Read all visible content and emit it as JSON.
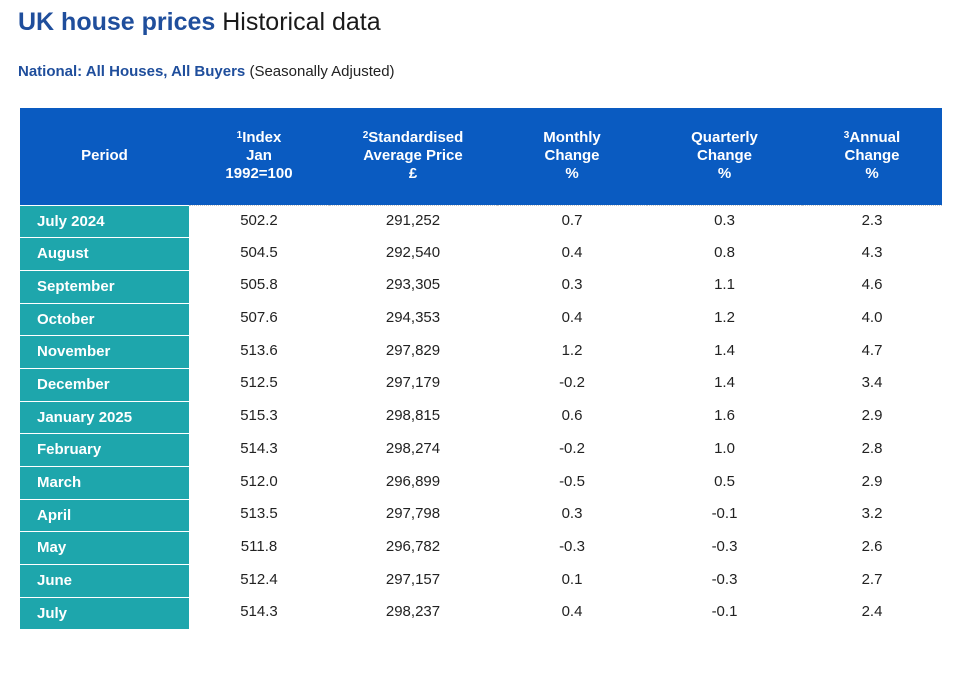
{
  "header": {
    "title_brand": "UK house prices",
    "title_rest": "Historical data"
  },
  "subheader": {
    "label": "National: All Houses, All Buyers",
    "qualifier": "(Seasonally Adjusted)"
  },
  "table": {
    "columns": [
      {
        "sup": "",
        "lines": [
          "Period"
        ]
      },
      {
        "sup": "1",
        "lines": [
          "Index",
          "Jan",
          "1992=100"
        ]
      },
      {
        "sup": "2",
        "lines": [
          "Standardised",
          "Average Price",
          "£"
        ]
      },
      {
        "sup": "",
        "lines": [
          "Monthly",
          "Change",
          "%"
        ]
      },
      {
        "sup": "",
        "lines": [
          "Quarterly",
          "Change",
          "%"
        ]
      },
      {
        "sup": "3",
        "lines": [
          "Annual",
          "Change",
          "%"
        ]
      }
    ],
    "rows": [
      {
        "period": "July 2024",
        "index": "502.2",
        "price": "291,252",
        "monthly": "0.7",
        "quarterly": "0.3",
        "annual": "2.3"
      },
      {
        "period": "August",
        "index": "504.5",
        "price": "292,540",
        "monthly": "0.4",
        "quarterly": "0.8",
        "annual": "4.3"
      },
      {
        "period": "September",
        "index": "505.8",
        "price": "293,305",
        "monthly": "0.3",
        "quarterly": "1.1",
        "annual": "4.6"
      },
      {
        "period": "October",
        "index": "507.6",
        "price": "294,353",
        "monthly": "0.4",
        "quarterly": "1.2",
        "annual": "4.0"
      },
      {
        "period": "November",
        "index": "513.6",
        "price": "297,829",
        "monthly": "1.2",
        "quarterly": "1.4",
        "annual": "4.7"
      },
      {
        "period": "December",
        "index": "512.5",
        "price": "297,179",
        "monthly": "-0.2",
        "quarterly": "1.4",
        "annual": "3.4"
      },
      {
        "period": "January 2025",
        "index": "515.3",
        "price": "298,815",
        "monthly": "0.6",
        "quarterly": "1.6",
        "annual": "2.9"
      },
      {
        "period": "February",
        "index": "514.3",
        "price": "298,274",
        "monthly": "-0.2",
        "quarterly": "1.0",
        "annual": "2.8"
      },
      {
        "period": "March",
        "index": "512.0",
        "price": "296,899",
        "monthly": "-0.5",
        "quarterly": "0.5",
        "annual": "2.9"
      },
      {
        "period": "April",
        "index": "513.5",
        "price": "297,798",
        "monthly": "0.3",
        "quarterly": "-0.1",
        "annual": "3.2"
      },
      {
        "period": "May",
        "index": "511.8",
        "price": "296,782",
        "monthly": "-0.3",
        "quarterly": "-0.3",
        "annual": "2.6"
      },
      {
        "period": "June",
        "index": "512.4",
        "price": "297,157",
        "monthly": "0.1",
        "quarterly": "-0.3",
        "annual": "2.7"
      },
      {
        "period": "July",
        "index": "514.3",
        "price": "298,237",
        "monthly": "0.4",
        "quarterly": "-0.1",
        "annual": "2.4"
      }
    ]
  },
  "colors": {
    "brand_blue": "#1f4e9c",
    "header_bg": "#0a5bc1",
    "period_bg": "#1ea6ac"
  }
}
